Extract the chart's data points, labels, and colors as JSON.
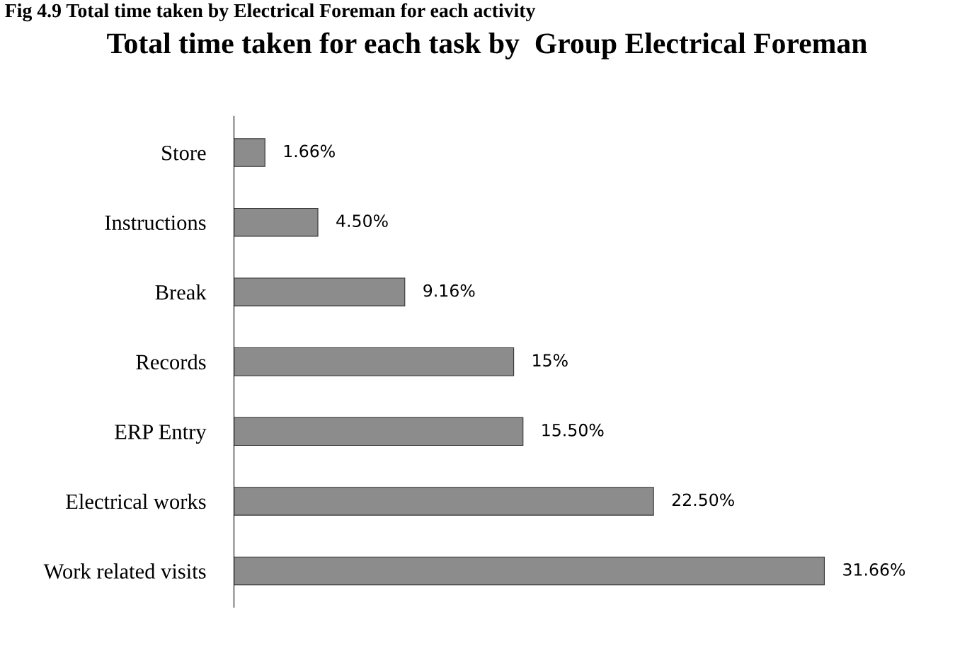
{
  "chart_data": {
    "type": "bar",
    "orientation": "horizontal",
    "title": "Total time taken for each task by  Group Electrical Foreman",
    "categories": [
      "Store",
      "Instructions",
      "Break",
      "Records",
      "ERP Entry",
      "Electrical works",
      "Work related visits"
    ],
    "values": [
      1.66,
      4.5,
      9.16,
      15,
      15.5,
      22.5,
      31.66
    ],
    "value_labels": [
      "1.66%",
      "4.50%",
      "9.16%",
      "15%",
      "15.50%",
      "22.50%",
      "31.66%"
    ],
    "color": "#8c8c8c",
    "annotations": [
      "Fig 4.9 Total time taken by Electrical Foreman for each activity"
    ],
    "grid": false,
    "legend": false
  }
}
